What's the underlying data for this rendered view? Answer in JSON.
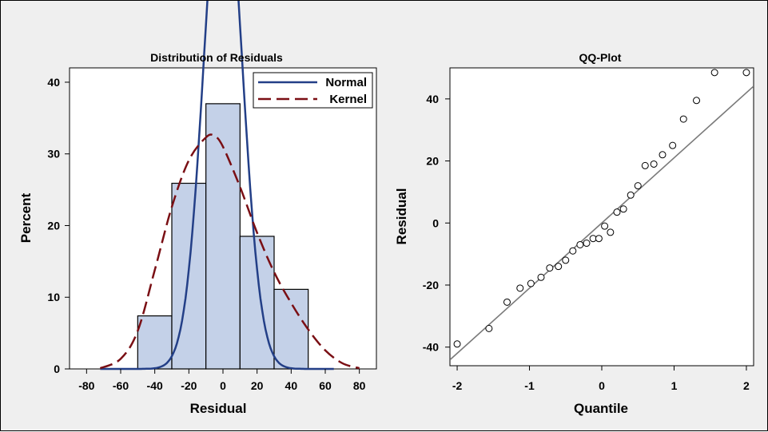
{
  "colors": {
    "background": "#efefef",
    "bar_fill": "#c4d1e8",
    "normal_curve": "#233f87",
    "kernel_curve": "#7a0f14",
    "ref_line": "#7a7a7a"
  },
  "chart_data": [
    {
      "type": "bar",
      "title": "Distribution of Residuals",
      "xlabel": "Residual",
      "ylabel": "Percent",
      "xlim": [
        -90,
        90
      ],
      "ylim": [
        0,
        42
      ],
      "xticks": [
        "-80",
        "-60",
        "-40",
        "-20",
        "0",
        "20",
        "40",
        "60",
        "80"
      ],
      "yticks": [
        "0",
        "10",
        "20",
        "30",
        "40"
      ],
      "bins": [
        {
          "start": -50,
          "end": -30,
          "value": 7.4
        },
        {
          "start": -30,
          "end": -10,
          "value": 25.9
        },
        {
          "start": -10,
          "end": 10,
          "value": 37.0
        },
        {
          "start": 10,
          "end": 30,
          "value": 18.5
        },
        {
          "start": 30,
          "end": 50,
          "value": 11.1
        }
      ],
      "normal": {
        "mean": 0,
        "sd": 11
      },
      "legend": [
        "Normal",
        "Kernel"
      ],
      "legend_position": "top-right",
      "normal_range": [
        -72,
        65
      ],
      "kernel": {
        "x": [
          -72,
          -60,
          -50,
          -40,
          -30,
          -20,
          -10,
          -5,
          0,
          10,
          20,
          30,
          40,
          50,
          60,
          70,
          80
        ],
        "y": [
          0.1,
          1.4,
          5.3,
          13.8,
          22.6,
          29.1,
          32.3,
          32.5,
          31.0,
          25.4,
          19.0,
          13.5,
          9.2,
          5.5,
          2.6,
          0.8,
          0.1
        ]
      }
    },
    {
      "type": "scatter",
      "title": "QQ-Plot",
      "xlabel": "Quantile",
      "ylabel": "Residual",
      "xlim": [
        -2.1,
        2.1
      ],
      "ylim": [
        -46,
        50
      ],
      "xticks": [
        "-2",
        "-1",
        "0",
        "1",
        "2"
      ],
      "yticks": [
        "-40",
        "-20",
        "0",
        "20",
        "40"
      ],
      "points": [
        [
          -2.0,
          -39
        ],
        [
          -1.56,
          -34
        ],
        [
          -1.31,
          -25.5
        ],
        [
          -1.13,
          -21
        ],
        [
          -0.98,
          -19.5
        ],
        [
          -0.84,
          -17.5
        ],
        [
          -0.72,
          -14.5
        ],
        [
          -0.6,
          -14
        ],
        [
          -0.5,
          -12
        ],
        [
          -0.4,
          -9
        ],
        [
          -0.3,
          -7
        ],
        [
          -0.21,
          -6.5
        ],
        [
          -0.12,
          -5
        ],
        [
          -0.04,
          -5
        ],
        [
          0.04,
          -1
        ],
        [
          0.12,
          -3
        ],
        [
          0.21,
          3.5
        ],
        [
          0.3,
          4.5
        ],
        [
          0.4,
          9
        ],
        [
          0.5,
          12
        ],
        [
          0.6,
          18.5
        ],
        [
          0.72,
          19
        ],
        [
          0.84,
          22
        ],
        [
          0.98,
          25
        ],
        [
          1.13,
          33.5
        ],
        [
          1.31,
          39.5
        ],
        [
          1.56,
          48.5
        ],
        [
          2.0,
          48.5
        ]
      ],
      "ref_line": {
        "intercept": 0,
        "slope": 21
      }
    }
  ]
}
